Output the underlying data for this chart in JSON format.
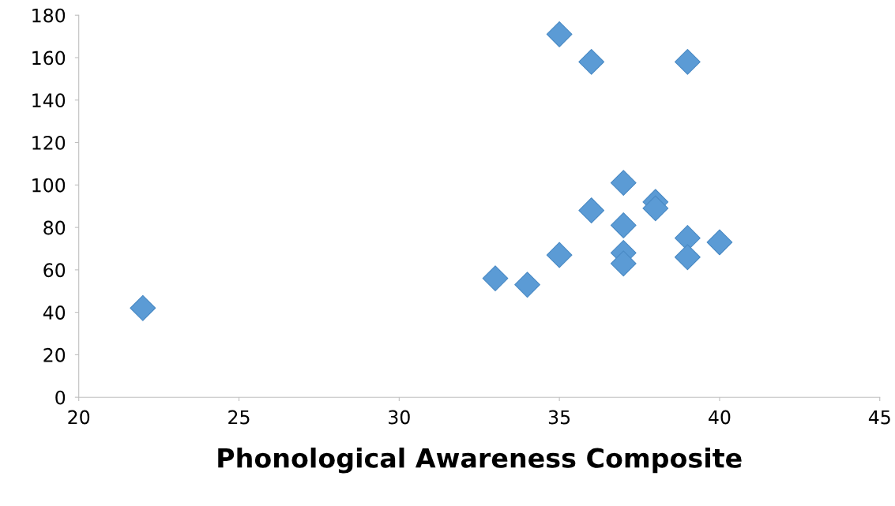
{
  "chart_data": {
    "type": "scatter",
    "xlabel": "Phonological Awareness Composite",
    "x": [
      22,
      33,
      34,
      35,
      35,
      36,
      36,
      37,
      37,
      37,
      37,
      38,
      38,
      39,
      39,
      39,
      40
    ],
    "values": [
      42,
      56,
      53,
      67,
      171,
      158,
      88,
      101,
      81,
      68,
      63,
      92,
      89,
      158,
      75,
      66,
      73
    ],
    "color": "#5b9bd5",
    "marker": "diamond",
    "xlim": [
      20,
      45
    ],
    "xticks": [
      20,
      25,
      30,
      35,
      40,
      45
    ],
    "ylim": [
      0,
      180
    ],
    "yticks": [
      0,
      20,
      40,
      60,
      80,
      100,
      120,
      140,
      160,
      180
    ],
    "grid": false
  }
}
